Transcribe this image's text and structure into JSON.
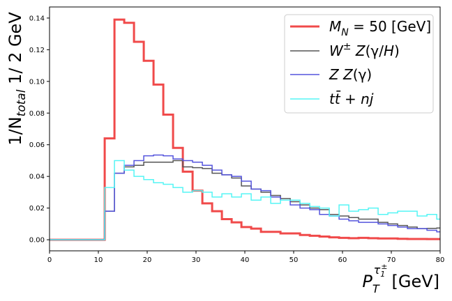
{
  "chart_data": {
    "type": "line",
    "title": "",
    "step": true,
    "xlabel": {
      "base": "P",
      "sub": "T",
      "sup_base": "τ",
      "sup_sub": "1",
      "sup_sup": "±",
      "unit": "[GeV]"
    },
    "ylabel": {
      "pre": "1/N",
      "sub": "total",
      "post": " 1/ 2 GeV"
    },
    "xlim": [
      0,
      80
    ],
    "ylim": [
      -0.007,
      0.147
    ],
    "xticks": [
      0,
      10,
      20,
      30,
      40,
      50,
      60,
      70,
      80
    ],
    "yticks": [
      0.0,
      0.02,
      0.04,
      0.06,
      0.08,
      0.1,
      0.12,
      0.14
    ],
    "ytick_labels": [
      "0.00",
      "0.02",
      "0.04",
      "0.06",
      "0.08",
      "0.10",
      "0.12",
      "0.14"
    ],
    "grid": false,
    "legend_position": "top-right",
    "bin_edges": [
      0,
      11.3,
      13.3,
      15.3,
      17.3,
      19.3,
      21.3,
      23.3,
      25.3,
      27.3,
      29.3,
      31.3,
      33.3,
      35.3,
      37.3,
      39.3,
      41.3,
      43.3,
      45.3,
      47.3,
      49.3,
      51.3,
      53.3,
      55.3,
      57.3,
      59.3,
      61.3,
      63.3,
      65.3,
      67.3,
      69.3,
      71.3,
      73.3,
      75.3,
      77.3,
      79.3,
      80
    ],
    "series": [
      {
        "name_parts": [
          {
            "t": "M",
            "i": true
          },
          {
            "t": "N",
            "sub": true,
            "i": true
          },
          {
            "t": " = 50 [GeV]"
          }
        ],
        "color": "#f04a4a",
        "width": 3,
        "values": [
          0,
          0.064,
          0.139,
          0.137,
          0.125,
          0.113,
          0.098,
          0.079,
          0.058,
          0.043,
          0.031,
          0.023,
          0.018,
          0.013,
          0.011,
          0.008,
          0.007,
          0.005,
          0.005,
          0.004,
          0.004,
          0.003,
          0.0025,
          0.002,
          0.0015,
          0.0012,
          0.001,
          0.0012,
          0.001,
          0.0008,
          0.0008,
          0.0006,
          0.0005,
          0.0005,
          0.0004,
          0.0004
        ]
      },
      {
        "name_parts": [
          {
            "t": "W",
            "i": true
          },
          {
            "t": "±",
            "sup": true
          },
          {
            "t": "  "
          },
          {
            "t": "Z",
            "i": true
          },
          {
            "t": "(γ/"
          },
          {
            "t": "H",
            "i": true
          },
          {
            "t": ")"
          }
        ],
        "color": "#555555",
        "width": 1.5,
        "values": [
          0,
          0.018,
          0.042,
          0.046,
          0.047,
          0.049,
          0.049,
          0.049,
          0.05,
          0.046,
          0.0455,
          0.045,
          0.042,
          0.041,
          0.039,
          0.034,
          0.032,
          0.03,
          0.028,
          0.026,
          0.024,
          0.022,
          0.02,
          0.019,
          0.016,
          0.015,
          0.014,
          0.013,
          0.013,
          0.011,
          0.01,
          0.009,
          0.008,
          0.007,
          0.0072,
          0.0074
        ]
      },
      {
        "name_parts": [
          {
            "t": "Z Z",
            "i": true
          },
          {
            "t": "(γ)"
          }
        ],
        "color": "#5555dd",
        "width": 1.5,
        "values": [
          0,
          0.018,
          0.042,
          0.047,
          0.05,
          0.053,
          0.0535,
          0.053,
          0.051,
          0.05,
          0.049,
          0.047,
          0.044,
          0.041,
          0.04,
          0.037,
          0.032,
          0.031,
          0.027,
          0.025,
          0.022,
          0.02,
          0.019,
          0.016,
          0.015,
          0.013,
          0.012,
          0.011,
          0.011,
          0.01,
          0.009,
          0.008,
          0.007,
          0.007,
          0.006,
          0.005
        ]
      },
      {
        "name_parts": [
          {
            "t": "t",
            "i": true
          },
          {
            "t": "t̄",
            "i": true
          },
          {
            "t": " + "
          },
          {
            "t": "nj",
            "i": true
          }
        ],
        "color": "#55f5f5",
        "width": 1.5,
        "values": [
          0,
          0.033,
          0.05,
          0.044,
          0.04,
          0.038,
          0.036,
          0.035,
          0.033,
          0.03,
          0.031,
          0.03,
          0.027,
          0.029,
          0.027,
          0.029,
          0.025,
          0.027,
          0.023,
          0.025,
          0.025,
          0.023,
          0.021,
          0.02,
          0.015,
          0.022,
          0.018,
          0.019,
          0.02,
          0.016,
          0.017,
          0.018,
          0.018,
          0.015,
          0.016,
          0.013
        ]
      }
    ]
  }
}
